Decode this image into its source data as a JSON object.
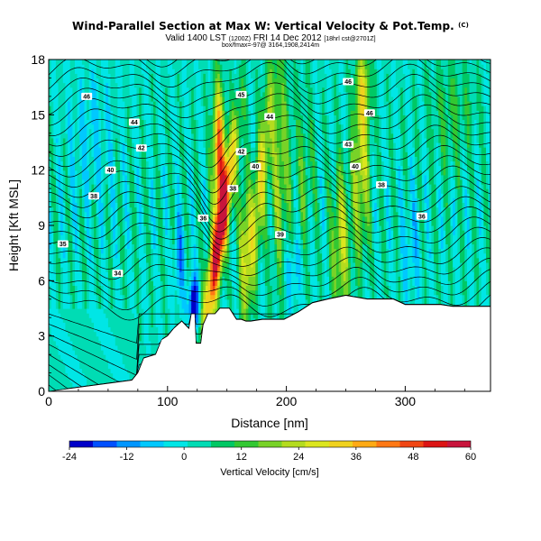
{
  "title": "Wind-Parallel Section at Max W: Vertical Velocity & Pot.Temp.",
  "title_superscript": "(C)",
  "subtitle_main": "Valid 1400 LST",
  "subtitle_utc": "(1200Z)",
  "subtitle_date": "FRI 14 Dec 2012",
  "subtitle_grid": "[18hrl cst@2701Z]",
  "subtitle_detail": "box/fmax=-97@ 3164,1908,2414m",
  "chart_data": {
    "type": "heatmap",
    "xlabel": "Distance [nm]",
    "ylabel": "Height [Kft MSL]",
    "xlim": [
      0,
      372
    ],
    "ylim": [
      0,
      18
    ],
    "x_ticks": [
      0,
      100,
      200,
      300
    ],
    "y_ticks": [
      0,
      3,
      6,
      9,
      12,
      15,
      18
    ],
    "x_tick_labels": [
      "0",
      "100",
      "200",
      "300"
    ],
    "y_tick_labels": [
      "0",
      "3",
      "6",
      "9",
      "12",
      "15",
      "18"
    ],
    "colorbar": {
      "label": "Vertical Velocity [cm/s]",
      "range": [
        -24,
        60
      ],
      "tick_values": [
        -24,
        -12,
        0,
        12,
        24,
        36,
        48,
        60
      ],
      "tick_labels": [
        "-24",
        "-12",
        "0",
        "12",
        "24",
        "36",
        "48",
        "60"
      ],
      "colors": [
        "#0000c8",
        "#0050ff",
        "#0096ff",
        "#00c8ff",
        "#00e6e6",
        "#00dcb4",
        "#00c864",
        "#32c832",
        "#78d228",
        "#b4dc1e",
        "#dce61e",
        "#f0d21e",
        "#ffaa14",
        "#ff7814",
        "#f04614",
        "#dc1414",
        "#c8143c"
      ]
    },
    "velocity_features": [
      {
        "x": 140,
        "height": 9,
        "w": 60,
        "desc": "strongest updraft"
      },
      {
        "x": 122,
        "height": 5,
        "w": -22,
        "desc": "strongest downdraft"
      },
      {
        "x": 175,
        "height": 12,
        "w": 30
      },
      {
        "x": 265,
        "height": 12,
        "w": 28
      },
      {
        "x": 245,
        "height": 8,
        "w": 22
      }
    ],
    "terrain_kft": [
      [
        0,
        0
      ],
      [
        70,
        0.6
      ],
      [
        75,
        1.0
      ],
      [
        80,
        1.8
      ],
      [
        90,
        2.0
      ],
      [
        95,
        2.8
      ],
      [
        100,
        3.0
      ],
      [
        105,
        3.4
      ],
      [
        112,
        3.8
      ],
      [
        118,
        3.4
      ],
      [
        120,
        4.2
      ],
      [
        123,
        4.2
      ],
      [
        124,
        2.6
      ],
      [
        128,
        2.6
      ],
      [
        130,
        3.6
      ],
      [
        134,
        4.2
      ],
      [
        140,
        4.2
      ],
      [
        144,
        4.5
      ],
      [
        152,
        4.5
      ],
      [
        158,
        3.9
      ],
      [
        162,
        3.9
      ],
      [
        166,
        3.8
      ],
      [
        170,
        3.8
      ],
      [
        180,
        3.9
      ],
      [
        190,
        3.9
      ],
      [
        198,
        3.9
      ],
      [
        210,
        4.3
      ],
      [
        222,
        4.8
      ],
      [
        235,
        5.0
      ],
      [
        250,
        5.2
      ],
      [
        268,
        5.0
      ],
      [
        290,
        5.0
      ],
      [
        300,
        4.7
      ],
      [
        330,
        4.7
      ],
      [
        340,
        4.6
      ],
      [
        372,
        4.6
      ]
    ],
    "theta_contours": [
      {
        "label": "34",
        "label_x": 58,
        "label_height": 6.4
      },
      {
        "label": "35",
        "label_x": 12,
        "label_height": 8.0
      },
      {
        "label": "36",
        "label_x": 130,
        "label_height": 9.4
      },
      {
        "label": "36",
        "label_x": 314,
        "label_height": 9.5
      },
      {
        "label": "38",
        "label_x": 38,
        "label_height": 10.6
      },
      {
        "label": "38",
        "label_x": 155,
        "label_height": 11.0
      },
      {
        "label": "38",
        "label_x": 280,
        "label_height": 11.2
      },
      {
        "label": "39",
        "label_x": 195,
        "label_height": 8.5
      },
      {
        "label": "40",
        "label_x": 52,
        "label_height": 12.0
      },
      {
        "label": "40",
        "label_x": 174,
        "label_height": 12.2
      },
      {
        "label": "40",
        "label_x": 258,
        "label_height": 12.2
      },
      {
        "label": "42",
        "label_x": 78,
        "label_height": 13.2
      },
      {
        "label": "42",
        "label_x": 162,
        "label_height": 13.0
      },
      {
        "label": "43",
        "label_x": 252,
        "label_height": 13.4
      },
      {
        "label": "44",
        "label_x": 72,
        "label_height": 14.6
      },
      {
        "label": "44",
        "label_x": 186,
        "label_height": 14.9
      },
      {
        "label": "45",
        "label_x": 162,
        "label_height": 16.1
      },
      {
        "label": "46",
        "label_x": 32,
        "label_height": 16.0
      },
      {
        "label": "46",
        "label_x": 270,
        "label_height": 15.1
      },
      {
        "label": "46",
        "label_x": 252,
        "label_height": 16.8
      }
    ]
  }
}
